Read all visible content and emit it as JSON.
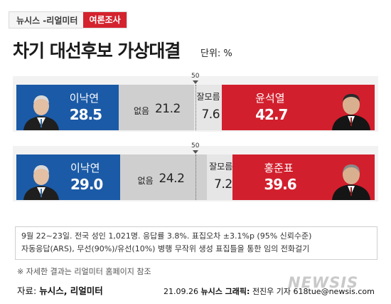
{
  "tag": {
    "source": "뉴시스 -리얼미터",
    "category": "여론조사"
  },
  "title": "차기 대선후보 가상대결",
  "unit": "단위: %",
  "midpoint_label": "50",
  "chart_data": [
    {
      "type": "bar",
      "orientation": "horizontal-stacked",
      "categories": [
        "이낙연",
        "없음",
        "잘모름",
        "윤석열"
      ],
      "values": [
        28.5,
        21.2,
        7.6,
        42.7
      ],
      "labels": {
        "left_name": "이낙연",
        "left_value": "28.5",
        "none_label": "없음",
        "none_value": "21.2",
        "dk_label": "잘모름",
        "dk_value": "7.6",
        "right_name": "윤석열",
        "right_value": "42.7"
      },
      "colors": [
        "#1b5aa6",
        "#cfcfcf",
        "#e6e6e6",
        "#d21f2d"
      ],
      "midpoint": 50
    },
    {
      "type": "bar",
      "orientation": "horizontal-stacked",
      "categories": [
        "이낙연",
        "없음",
        "잘모름",
        "홍준표"
      ],
      "values": [
        29.0,
        24.2,
        7.2,
        39.6
      ],
      "labels": {
        "left_name": "이낙연",
        "left_value": "29.0",
        "none_label": "없음",
        "none_value": "24.2",
        "dk_label": "잘모름",
        "dk_value": "7.2",
        "right_name": "홍준표",
        "right_value": "39.6"
      },
      "colors": [
        "#1b5aa6",
        "#cfcfcf",
        "#e6e6e6",
        "#d21f2d"
      ],
      "midpoint": 50
    }
  ],
  "notes": {
    "line1": "9월 22~23일. 전국 성인 1,021명. 응답률 3.8%. 표집오차 ±3.1%p (95% 신뢰수준)",
    "line2": "자동응답(ARS), 무선(90%)/유선(10%) 병행   무작위 생성 표집틀을 통한 임의 전화걸기"
  },
  "footer": {
    "note": "※ 자세한 결과는 리얼미터 홈페이지 참조",
    "source_label": "자료:",
    "source_value": "뉴시스, 리얼미터",
    "date": "21.09.26",
    "credit_label": "뉴시스 그래픽:",
    "credit_value": "전진우 기자 618tue@newsis.com",
    "watermark": "NEWSIS"
  }
}
